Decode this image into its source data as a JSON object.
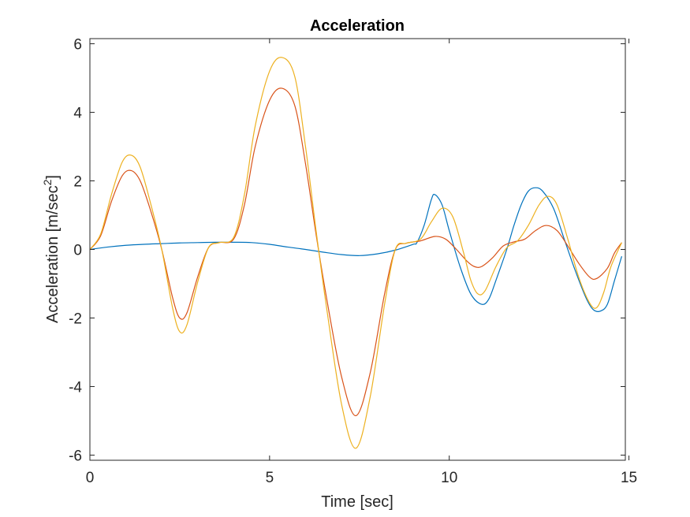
{
  "chart_data": {
    "type": "line",
    "title": "Acceleration",
    "xlabel": "Time [sec]",
    "ylabel_main": "Acceleration [m/sec",
    "ylabel_sup": "2",
    "ylabel_close": "]",
    "xlim": [
      0,
      14.9
    ],
    "ylim": [
      -6.15,
      6.15
    ],
    "xticks": [
      0,
      5,
      10,
      15
    ],
    "yticks": [
      -6,
      -4,
      -2,
      0,
      2,
      4,
      6
    ],
    "box": true,
    "grid": false,
    "series": [
      {
        "color": "#0072BD",
        "x": [
          0,
          0.5,
          1,
          1.5,
          2,
          2.5,
          3,
          3.5,
          4,
          4.5,
          5,
          5.5,
          6,
          6.5,
          7,
          7.5,
          8,
          8.5,
          9,
          9.1,
          9.3,
          9.5,
          9.6,
          9.8,
          10,
          10.3,
          10.6,
          10.9,
          11.1,
          11.3,
          11.6,
          11.8,
          12,
          12.2,
          12.4,
          12.6,
          12.9,
          13.2,
          13.5,
          13.8,
          14,
          14.2,
          14.4,
          14.6,
          14.8
        ],
        "y": [
          0,
          0.07,
          0.12,
          0.15,
          0.17,
          0.19,
          0.2,
          0.21,
          0.21,
          0.2,
          0.15,
          0.07,
          0,
          -0.08,
          -0.15,
          -0.18,
          -0.13,
          -0.02,
          0.15,
          0.2,
          0.7,
          1.45,
          1.6,
          1.3,
          0.55,
          -0.5,
          -1.3,
          -1.6,
          -1.45,
          -0.9,
          0,
          0.7,
          1.3,
          1.7,
          1.8,
          1.7,
          1.2,
          0.3,
          -0.6,
          -1.4,
          -1.75,
          -1.8,
          -1.6,
          -0.9,
          -0.2
        ]
      },
      {
        "color": "#D95319",
        "x": [
          0,
          0.3,
          0.6,
          0.9,
          1.15,
          1.4,
          1.7,
          2,
          2.3,
          2.5,
          2.7,
          3,
          3.3,
          3.6,
          4,
          4.3,
          4.6,
          5,
          5.35,
          5.7,
          6,
          6.3,
          6.6,
          7,
          7.4,
          7.8,
          8.2,
          8.5,
          8.8,
          9.2,
          9.6,
          9.9,
          10.2,
          10.5,
          10.7,
          10.9,
          11.2,
          11.5,
          11.8,
          12.1,
          12.4,
          12.7,
          13,
          13.3,
          13.6,
          13.9,
          14.1,
          14.4,
          14.6,
          14.8
        ],
        "y": [
          0,
          0.4,
          1.4,
          2.15,
          2.3,
          2.0,
          1.1,
          0,
          -1.4,
          -2.0,
          -1.85,
          -0.8,
          0.05,
          0.2,
          0.3,
          1.3,
          3.0,
          4.35,
          4.7,
          4.2,
          2.5,
          0.4,
          -1.5,
          -3.7,
          -4.85,
          -3.6,
          -1.3,
          0,
          0.18,
          0.25,
          0.38,
          0.3,
          0,
          -0.35,
          -0.5,
          -0.5,
          -0.25,
          0.1,
          0.22,
          0.3,
          0.55,
          0.7,
          0.55,
          0.1,
          -0.4,
          -0.8,
          -0.85,
          -0.55,
          -0.1,
          0.2
        ]
      },
      {
        "color": "#EDB120",
        "x": [
          0,
          0.3,
          0.6,
          0.9,
          1.15,
          1.4,
          1.7,
          2,
          2.3,
          2.5,
          2.7,
          3,
          3.3,
          3.6,
          4,
          4.3,
          4.6,
          5,
          5.35,
          5.7,
          6,
          6.3,
          6.6,
          7,
          7.4,
          7.8,
          8.2,
          8.5,
          8.8,
          9.2,
          9.5,
          9.8,
          10.1,
          10.4,
          10.6,
          10.8,
          11.0,
          11.3,
          11.6,
          11.9,
          12.2,
          12.5,
          12.75,
          13.0,
          13.3,
          13.6,
          13.9,
          14.1,
          14.3,
          14.5,
          14.8
        ],
        "y": [
          0,
          0.45,
          1.6,
          2.55,
          2.75,
          2.4,
          1.3,
          0,
          -1.7,
          -2.4,
          -2.2,
          -0.95,
          0.05,
          0.2,
          0.35,
          1.6,
          3.6,
          5.2,
          5.6,
          5.05,
          3.0,
          0.5,
          -1.8,
          -4.5,
          -5.8,
          -4.3,
          -1.6,
          0,
          0.18,
          0.3,
          0.8,
          1.2,
          0.95,
          -0.1,
          -0.9,
          -1.3,
          -1.2,
          -0.5,
          0.05,
          0.25,
          0.7,
          1.3,
          1.55,
          1.3,
          0.3,
          -0.8,
          -1.55,
          -1.7,
          -1.25,
          -0.5,
          0.2
        ]
      }
    ]
  }
}
